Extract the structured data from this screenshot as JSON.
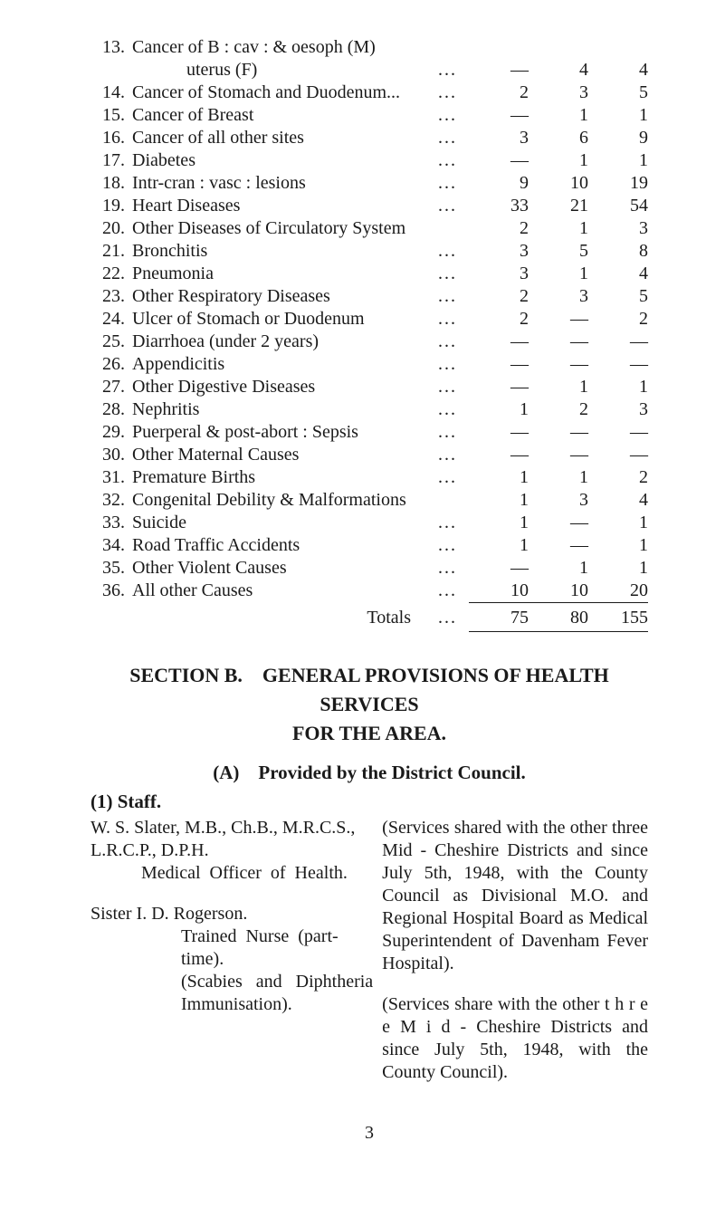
{
  "table": [
    {
      "n": "13.",
      "desc1": "Cancer of B : cav : & oesoph (M)",
      "desc2": "uterus (F)",
      "c1": "—",
      "c2": "4",
      "c3": "4"
    },
    {
      "n": "14.",
      "desc1": "Cancer of Stomach and Duodenum...",
      "c1": "2",
      "c2": "3",
      "c3": "5"
    },
    {
      "n": "15.",
      "desc1": "Cancer of Breast",
      "c1": "—",
      "c2": "1",
      "c3": "1"
    },
    {
      "n": "16.",
      "desc1": "Cancer of all other sites",
      "c1": "3",
      "c2": "6",
      "c3": "9"
    },
    {
      "n": "17.",
      "desc1": "Diabetes",
      "c1": "—",
      "c2": "1",
      "c3": "1"
    },
    {
      "n": "18.",
      "desc1": "Intr-cran : vasc : lesions",
      "c1": "9",
      "c2": "10",
      "c3": "19"
    },
    {
      "n": "19.",
      "desc1": "Heart Diseases",
      "c1": "33",
      "c2": "21",
      "c3": "54"
    },
    {
      "n": "20.",
      "desc1": "Other Diseases of Circulatory System",
      "nodots": true,
      "c1": "2",
      "c2": "1",
      "c3": "3"
    },
    {
      "n": "21.",
      "desc1": "Bronchitis",
      "c1": "3",
      "c2": "5",
      "c3": "8"
    },
    {
      "n": "22.",
      "desc1": "Pneumonia",
      "c1": "3",
      "c2": "1",
      "c3": "4"
    },
    {
      "n": "23.",
      "desc1": "Other Respiratory Diseases",
      "c1": "2",
      "c2": "3",
      "c3": "5"
    },
    {
      "n": "24.",
      "desc1": "Ulcer of Stomach or Duodenum",
      "c1": "2",
      "c2": "—",
      "c3": "2"
    },
    {
      "n": "25.",
      "desc1": "Diarrhoea (under 2 years)",
      "c1": "—",
      "c2": "—",
      "c3": "—"
    },
    {
      "n": "26.",
      "desc1": "Appendicitis",
      "c1": "—",
      "c2": "—",
      "c3": "—"
    },
    {
      "n": "27.",
      "desc1": "Other Digestive Diseases",
      "c1": "—",
      "c2": "1",
      "c3": "1"
    },
    {
      "n": "28.",
      "desc1": "Nephritis",
      "c1": "1",
      "c2": "2",
      "c3": "3"
    },
    {
      "n": "29.",
      "desc1": "Puerperal & post-abort : Sepsis",
      "c1": "—",
      "c2": "—",
      "c3": "—"
    },
    {
      "n": "30.",
      "desc1": "Other Maternal Causes",
      "c1": "—",
      "c2": "—",
      "c3": "—"
    },
    {
      "n": "31.",
      "desc1": "Premature Births",
      "c1": "1",
      "c2": "1",
      "c3": "2"
    },
    {
      "n": "32.",
      "desc1": "Congenital Debility & Malformations",
      "nodots": true,
      "c1": "1",
      "c2": "3",
      "c3": "4"
    },
    {
      "n": "33.",
      "desc1": "Suicide",
      "c1": "1",
      "c2": "—",
      "c3": "1"
    },
    {
      "n": "34.",
      "desc1": "Road Traffic Accidents",
      "c1": "1",
      "c2": "—",
      "c3": "1"
    },
    {
      "n": "35.",
      "desc1": "Other Violent Causes",
      "c1": "—",
      "c2": "1",
      "c3": "1"
    },
    {
      "n": "36.",
      "desc1": "All other Causes",
      "c1": "10",
      "c2": "10",
      "c3": "20"
    }
  ],
  "totals": {
    "label": "Totals",
    "c1": "75",
    "c2": "80",
    "c3": "155"
  },
  "sectionB_line1": "SECTION B. GENERAL PROVISIONS OF HEALTH SERVICES",
  "sectionB_line2": "FOR THE AREA.",
  "provided_tag": "(A)",
  "provided_text": "Provided by the District Council.",
  "staff_heading": "(1) Staff.",
  "people": [
    {
      "left": {
        "name_line": "W. S. Slater, M.B., Ch.B., M.R.C.S.,",
        "l2": "L.R.C.P., D.P.H.",
        "l3": "Medical  Officer  of  Health."
      },
      "right": "(Services shared with the other three Mid - Cheshire Districts and since July 5th, 1948, with the County Council as Divisional M.O. and Regional Hospital Board as Medical Superinten­dent of Davenham Fever Hospital)."
    },
    {
      "left": {
        "name_line": "Sister I. D. Rogerson.",
        "sub": [
          "Trained  Nurse  (part-time).",
          "(Scabies   and   Diphtheria",
          "Immunisation)."
        ]
      },
      "right": "(Services share with the other t h r e e  M i d - Cheshire Districts and since July 5th, 1948, with the County Coun­cil)."
    }
  ],
  "page_number": "3",
  "dots": "..."
}
